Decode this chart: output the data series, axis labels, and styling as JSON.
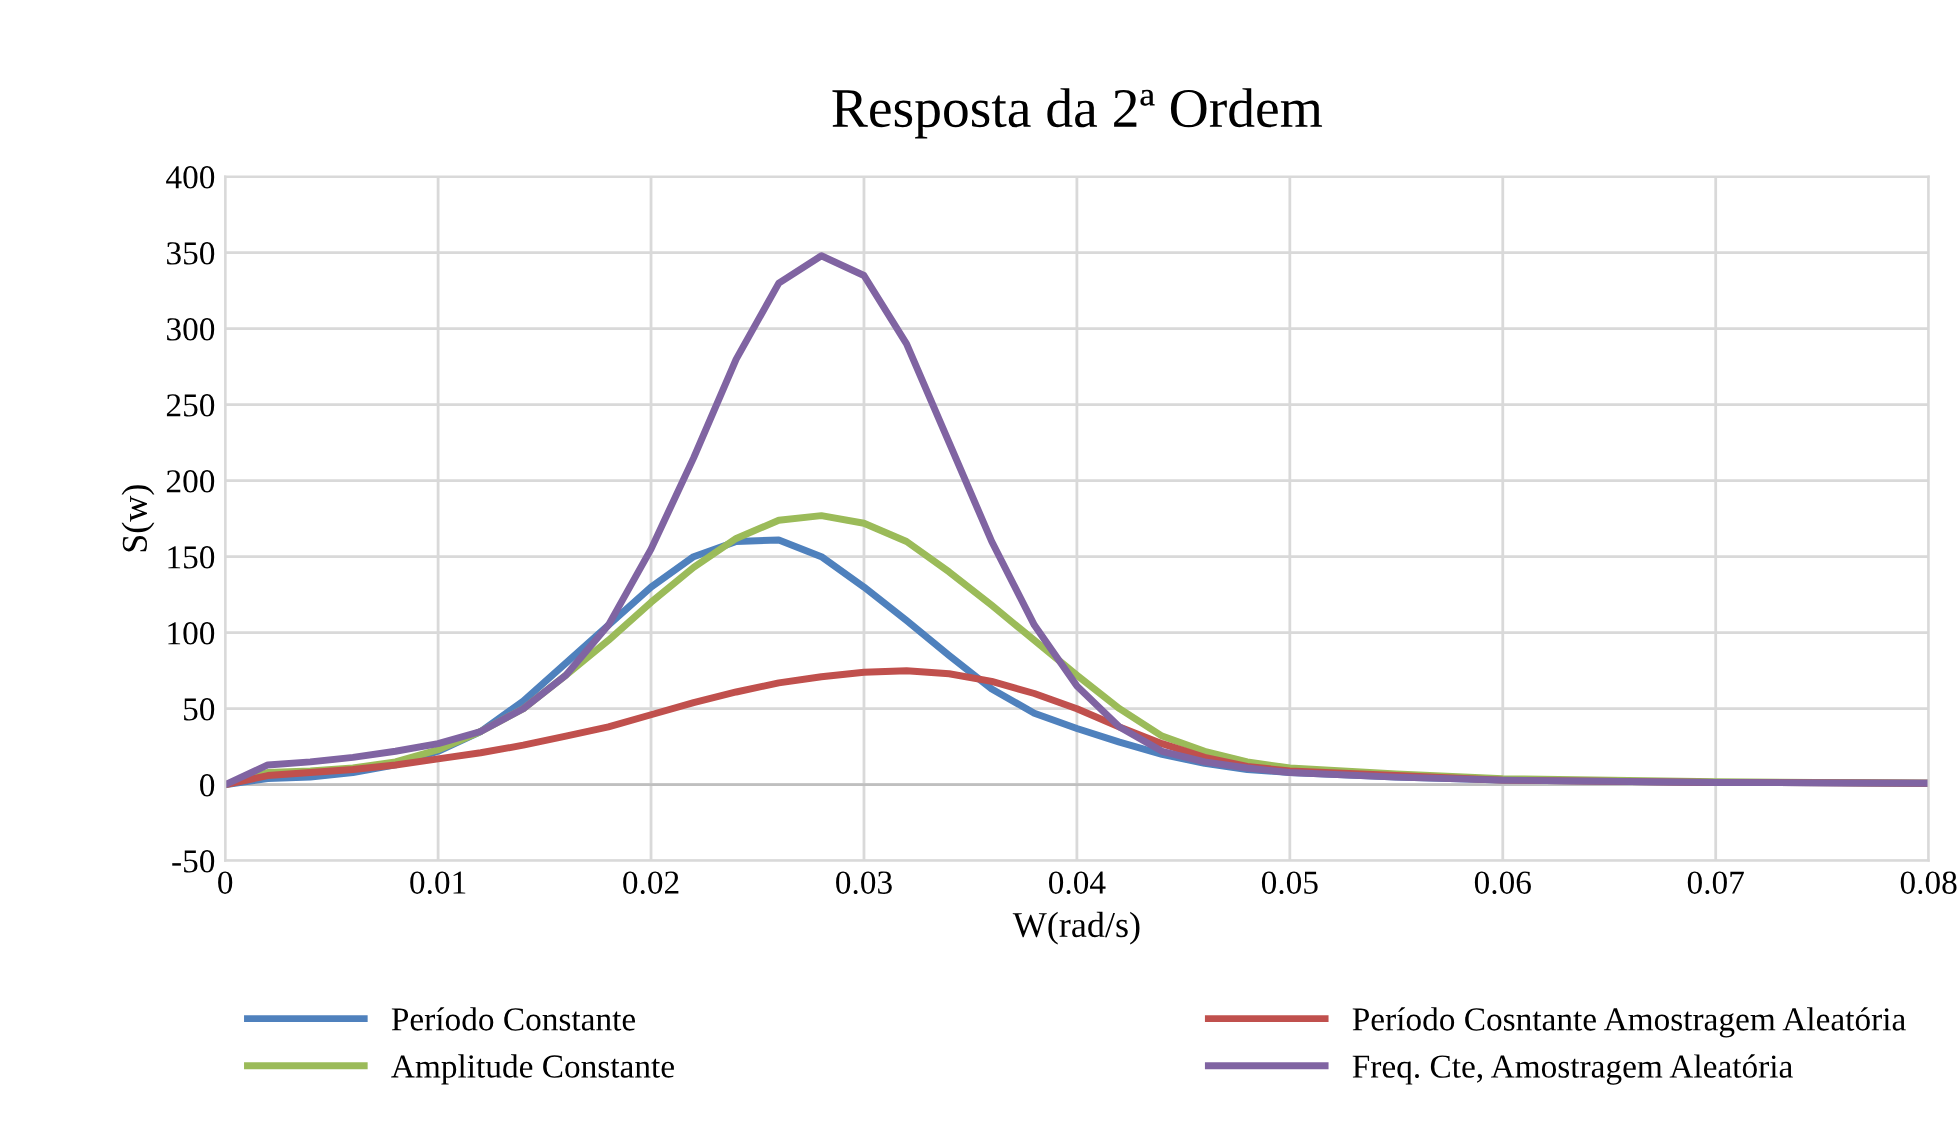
{
  "chart_data": {
    "type": "line",
    "title": "Resposta da 2ª Ordem",
    "xlabel": "W(rad/s)",
    "ylabel": "S(w)",
    "x": [
      0,
      0.002,
      0.004,
      0.006,
      0.008,
      0.01,
      0.012,
      0.014,
      0.016,
      0.018,
      0.02,
      0.022,
      0.024,
      0.026,
      0.028,
      0.03,
      0.032,
      0.034,
      0.036,
      0.038,
      0.04,
      0.042,
      0.044,
      0.046,
      0.048,
      0.05,
      0.055,
      0.06,
      0.07,
      0.08
    ],
    "series": [
      {
        "name": "Período Constante",
        "color": "#4f81bd",
        "values": [
          0,
          4,
          5,
          8,
          13,
          22,
          35,
          55,
          80,
          105,
          130,
          150,
          160,
          161,
          150,
          130,
          108,
          85,
          63,
          47,
          37,
          28,
          20,
          14,
          10,
          8,
          5,
          3,
          1.5,
          1
        ]
      },
      {
        "name": "Amplitude Constante",
        "color": "#9bbb59",
        "values": [
          0,
          8,
          9,
          11,
          15,
          23,
          35,
          50,
          72,
          95,
          120,
          143,
          162,
          174,
          177,
          172,
          160,
          140,
          118,
          95,
          72,
          50,
          32,
          22,
          15,
          11,
          7,
          4,
          2,
          1
        ]
      },
      {
        "name": "Período Cosntante Amostragem Aleatória",
        "color": "#c0504d",
        "values": [
          0,
          6,
          8,
          10,
          13,
          17,
          21,
          26,
          32,
          38,
          46,
          54,
          61,
          67,
          71,
          74,
          75,
          73,
          68,
          60,
          50,
          38,
          27,
          18,
          12,
          9,
          6,
          3,
          1.5,
          1
        ]
      },
      {
        "name": "Freq. Cte, Amostragem Aleatória",
        "color": "#8064a2",
        "values": [
          0,
          13,
          15,
          18,
          22,
          27,
          35,
          50,
          72,
          105,
          155,
          215,
          280,
          330,
          348,
          335,
          290,
          225,
          160,
          105,
          65,
          38,
          22,
          15,
          11,
          8,
          5,
          3,
          1.5,
          1
        ]
      }
    ],
    "xlim": [
      0,
      0.08
    ],
    "xticks": [
      0,
      0.01,
      0.02,
      0.03,
      0.04,
      0.05,
      0.06,
      0.07,
      0.08
    ],
    "ylim": [
      -50,
      400
    ],
    "yticks": [
      -50,
      0,
      50,
      100,
      150,
      200,
      250,
      300,
      350,
      400
    ],
    "grid": true,
    "legend": "bottom",
    "marker": "none",
    "line_style": "solid"
  }
}
